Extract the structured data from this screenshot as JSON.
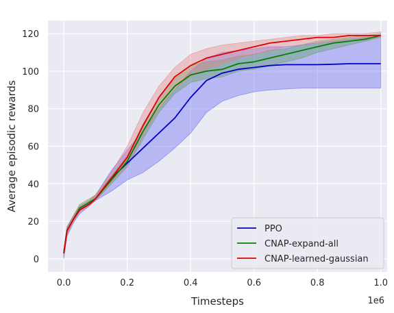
{
  "chart_data": {
    "type": "line",
    "title": "",
    "xlabel": "Timesteps",
    "ylabel": "Average episodic rewards",
    "x_offset_label": "1e6",
    "xlim": [
      -0.05,
      1.02
    ],
    "ylim": [
      -7,
      127
    ],
    "xticks": [
      0.0,
      0.2,
      0.4,
      0.6,
      0.8,
      1.0
    ],
    "xtick_labels": [
      "0.0",
      "0.2",
      "0.4",
      "0.6",
      "0.8",
      "1.0"
    ],
    "yticks": [
      0,
      20,
      40,
      60,
      80,
      100,
      120
    ],
    "ytick_labels": [
      "0",
      "20",
      "40",
      "60",
      "80",
      "100",
      "120"
    ],
    "grid": true,
    "legend_position": "bottom-right",
    "x": [
      0.0,
      0.01,
      0.03,
      0.05,
      0.08,
      0.1,
      0.15,
      0.2,
      0.25,
      0.3,
      0.35,
      0.4,
      0.45,
      0.5,
      0.55,
      0.6,
      0.65,
      0.7,
      0.75,
      0.8,
      0.85,
      0.9,
      0.95,
      1.0
    ],
    "series": [
      {
        "name": "PPO",
        "color": "#0000cc",
        "fill": "#6464f5",
        "values": [
          3,
          15,
          21,
          26,
          29,
          32,
          43,
          51,
          59,
          67,
          75,
          86,
          95,
          99,
          101,
          102,
          103,
          103.5,
          103.5,
          103.5,
          103.7,
          104,
          104,
          104
        ],
        "lower": [
          0,
          12,
          19,
          24,
          28,
          31,
          36,
          42,
          46,
          52,
          59,
          67,
          78,
          84,
          87,
          89,
          90,
          90.5,
          91,
          91,
          91,
          91,
          91,
          91
        ],
        "upper": [
          5,
          17,
          23,
          28,
          31,
          34,
          47,
          58,
          68,
          80,
          90,
          100,
          107,
          110,
          111,
          112,
          113,
          113,
          114,
          115,
          116,
          117,
          118,
          118
        ]
      },
      {
        "name": "CNAP-expand-all",
        "color": "#008000",
        "fill": "#5aa05a",
        "values": [
          3,
          15,
          21,
          27,
          30,
          32,
          42,
          52,
          68,
          82,
          92,
          98,
          100,
          101,
          104,
          105,
          107,
          109,
          111,
          113,
          115,
          116,
          117,
          119
        ],
        "lower": [
          1,
          13,
          20,
          26,
          29,
          31,
          40,
          49,
          64,
          78,
          88,
          94,
          96,
          97,
          100,
          101,
          103,
          105,
          107,
          110,
          112,
          114,
          116,
          118
        ],
        "upper": [
          5,
          17,
          23,
          29,
          32,
          34,
          44,
          55,
          72,
          86,
          96,
          103,
          105,
          106,
          108,
          109,
          111,
          112,
          114,
          116,
          117,
          118,
          119,
          120
        ]
      },
      {
        "name": "CNAP-learned-gaussian",
        "color": "#dd0000",
        "fill": "#e88080",
        "values": [
          3,
          15,
          21,
          26,
          29,
          32,
          43,
          54,
          71,
          86,
          97,
          103,
          107,
          109,
          111,
          113,
          115,
          116,
          117,
          118,
          118,
          119,
          119,
          119
        ],
        "lower": [
          1,
          13,
          20,
          25,
          28,
          31,
          41,
          50,
          66,
          80,
          91,
          97,
          101,
          104,
          107,
          109,
          111,
          113,
          114,
          115,
          116,
          117,
          117,
          118
        ],
        "upper": [
          5,
          17,
          23,
          28,
          31,
          34,
          46,
          60,
          78,
          92,
          102,
          109,
          112,
          114,
          115,
          116,
          117,
          118,
          119,
          119,
          120,
          120,
          120,
          121
        ]
      }
    ]
  }
}
